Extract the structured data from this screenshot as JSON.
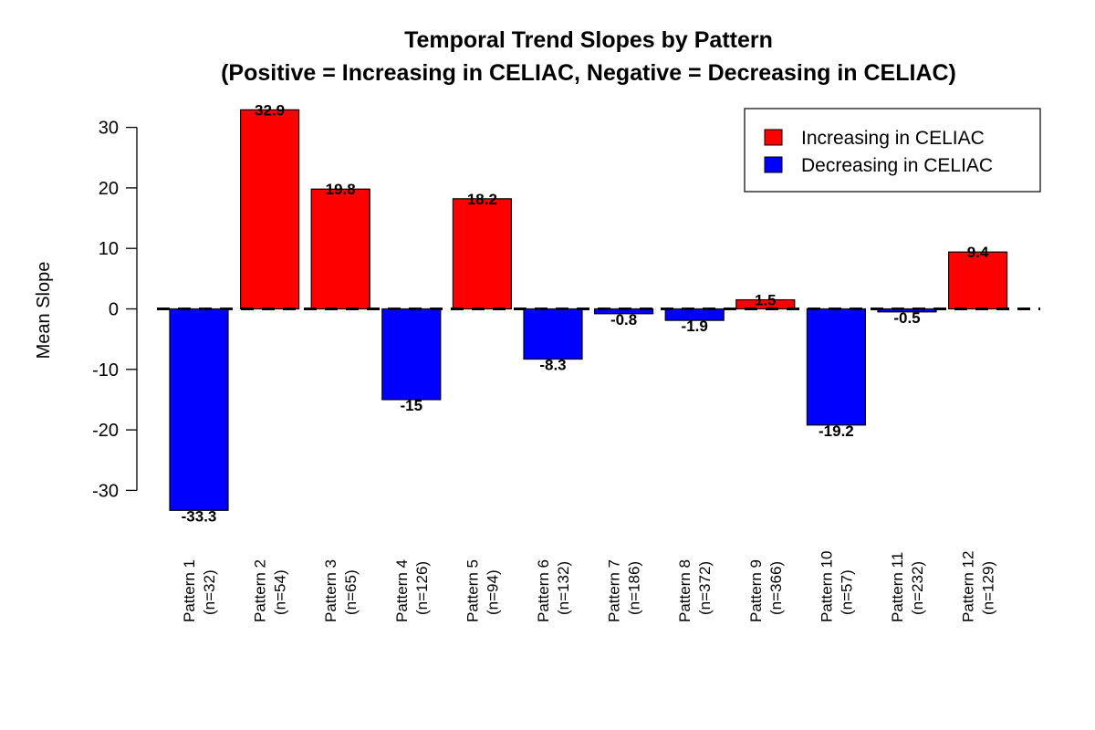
{
  "chart_data": {
    "type": "bar",
    "title_line1": "Temporal Trend Slopes by Pattern",
    "title_line2": "(Positive = Increasing in CELIAC, Negative = Decreasing in CELIAC)",
    "xlabel": "",
    "ylabel": "Mean Slope",
    "ylim": [
      -33.5,
      33
    ],
    "yticks": [
      -30,
      -20,
      -10,
      0,
      10,
      20,
      30
    ],
    "ytick_labels": [
      "-30",
      "-20",
      "-10",
      "0",
      "10",
      "20",
      "30"
    ],
    "reference_line": 0,
    "categories": [
      {
        "label": "Pattern 1",
        "n": "(n=32)"
      },
      {
        "label": "Pattern 2",
        "n": "(n=54)"
      },
      {
        "label": "Pattern 3",
        "n": "(n=65)"
      },
      {
        "label": "Pattern 4",
        "n": "(n=126)"
      },
      {
        "label": "Pattern 5",
        "n": "(n=94)"
      },
      {
        "label": "Pattern 6",
        "n": "(n=132)"
      },
      {
        "label": "Pattern 7",
        "n": "(n=186)"
      },
      {
        "label": "Pattern 8",
        "n": "(n=372)"
      },
      {
        "label": "Pattern 9",
        "n": "(n=366)"
      },
      {
        "label": "Pattern 10",
        "n": "(n=57)"
      },
      {
        "label": "Pattern 11",
        "n": "(n=232)"
      },
      {
        "label": "Pattern 12",
        "n": "(n=129)"
      }
    ],
    "values": [
      -33.3,
      32.9,
      19.8,
      -15,
      18.2,
      -8.3,
      -0.8,
      -1.9,
      1.5,
      -19.2,
      -0.5,
      9.4
    ],
    "value_labels": [
      "-33.3",
      "32.9",
      "19.8",
      "-15",
      "18.2",
      "-8.3",
      "-0.8",
      "-1.9",
      "1.5",
      "-19.2",
      "-0.5",
      "9.4"
    ],
    "colors": {
      "positive": "#ff0000",
      "negative": "#0000ff",
      "axis": "#000000"
    },
    "legend": {
      "position": "top-right",
      "entries": [
        {
          "label": "Increasing in CELIAC",
          "color": "#ff0000"
        },
        {
          "label": "Decreasing in CELIAC",
          "color": "#0000ff"
        }
      ]
    },
    "grid": false
  }
}
